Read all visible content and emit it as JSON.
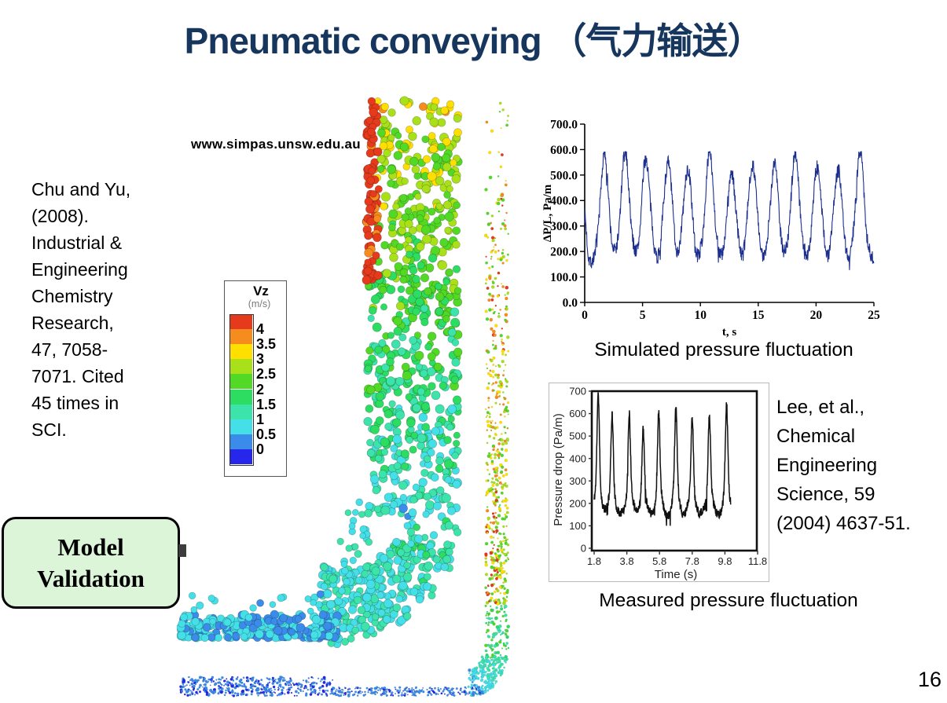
{
  "slide": {
    "title_en": "Pneumatic conveying",
    "title_cn": "（气力输送）",
    "title_color": "#17365d",
    "page_number": "16"
  },
  "left_citation": "Chu and Yu,\n(2008).\nIndustrial &\nEngineering\nChemistry\nResearch,\n47, 7058-\n7071. Cited\n45 times in\nSCI.",
  "right_citation": "Lee, et al.,\nChemical\nEngineering\nScience, 59\n(2004) 4637-51.",
  "model_validation": {
    "label": "Model\nValidation",
    "bg": "#dcf5d8",
    "border": "#000000"
  },
  "figure": {
    "url_text": "www.simpas.unsw.edu.au",
    "description": "DEM simulation of particle flow in a pneumatic conveying pipe bend",
    "legend": {
      "title": "Vz",
      "unit": "(m/s)",
      "tick_labels": [
        "4",
        "3.5",
        "3",
        "2.5",
        "2",
        "1.5",
        "1",
        "0.5",
        "0"
      ],
      "colors": [
        "#e63a1d",
        "#f68c1e",
        "#ffdf00",
        "#a8e01a",
        "#52d926",
        "#2cdd62",
        "#3ce3ab",
        "#45dfe8",
        "#3b8bea",
        "#2727ec"
      ]
    }
  },
  "chart_data": [
    {
      "id": "simulated",
      "type": "line",
      "caption": "Simulated pressure fluctuation",
      "xlabel": "t, s",
      "ylabel": "ΔP/L, Pa/m",
      "xlim": [
        0,
        25
      ],
      "ylim": [
        0,
        700
      ],
      "xticks": [
        "0",
        "5",
        "10",
        "15",
        "20",
        "25"
      ],
      "yticks": [
        "0.0",
        "100.0",
        "200.0",
        "300.0",
        "400.0",
        "500.0",
        "600.0",
        "700.0"
      ],
      "line_color": "#1c2f8e",
      "baseline": 165,
      "noise_amplitude": 30,
      "start_value": 340,
      "peaks": {
        "t": [
          1.7,
          3.5,
          5.3,
          7.2,
          8.9,
          10.8,
          12.7,
          14.5,
          16.4,
          18.2,
          20.1,
          21.9,
          23.8
        ],
        "value": [
          580,
          590,
          565,
          555,
          525,
          590,
          510,
          550,
          545,
          585,
          535,
          525,
          590
        ],
        "width": 0.5
      }
    },
    {
      "id": "measured",
      "type": "line",
      "caption": "Measured pressure fluctuation",
      "xlabel": "Time (s)",
      "ylabel": "Pressure drop (Pa/m)",
      "xlim": [
        1.8,
        11.8
      ],
      "ylim": [
        0,
        700
      ],
      "xticks": [
        "1.8",
        "3.8",
        "5.8",
        "7.8",
        "9.8",
        "11.8"
      ],
      "yticks": [
        "0",
        "100",
        "200",
        "300",
        "400",
        "500",
        "600",
        "700"
      ],
      "line_color": "#111111",
      "baseline": 138,
      "noise_amplitude": 20,
      "data_t_end": 10.15,
      "peaks": {
        "t": [
          2.05,
          2.9,
          3.95,
          4.8,
          5.75,
          6.8,
          7.8,
          8.85,
          9.9
        ],
        "value": [
          690,
          600,
          615,
          535,
          605,
          625,
          590,
          600,
          635
        ],
        "width": 0.1
      }
    }
  ]
}
